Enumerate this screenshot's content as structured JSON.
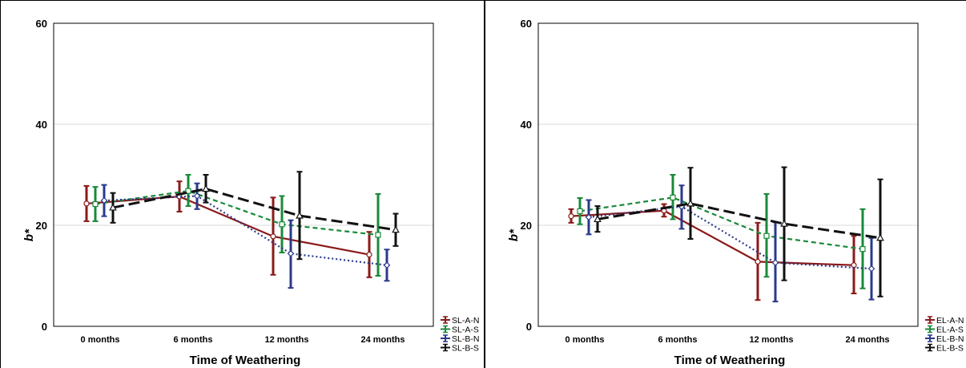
{
  "chart_data": [
    {
      "type": "line",
      "xlabel": "Time of Weathering",
      "ylabel": "b*",
      "ylim": [
        0,
        60
      ],
      "yticks": [
        0,
        20,
        40,
        60
      ],
      "categories": [
        "0 months",
        "6 months",
        "12 months",
        "24 months"
      ],
      "grid": true,
      "legend_position": "bottom-right",
      "series": [
        {
          "name": "SL-A-N",
          "color": "#8b1a1a",
          "values": [
            24.3,
            25.7,
            17.8,
            14.2
          ],
          "err_low": [
            20.8,
            22.7,
            10.2,
            9.7
          ],
          "err_high": [
            27.8,
            28.7,
            25.5,
            18.7
          ]
        },
        {
          "name": "SL-A-S",
          "color": "#1a8a3a",
          "values": [
            24.2,
            26.8,
            20.2,
            18.1
          ],
          "err_low": [
            20.8,
            23.8,
            14.6,
            10.0
          ],
          "err_high": [
            27.6,
            30.0,
            25.8,
            26.2
          ]
        },
        {
          "name": "SL-B-N",
          "color": "#2a3a8a",
          "values": [
            24.9,
            25.8,
            14.4,
            12.1
          ],
          "err_low": [
            21.8,
            23.2,
            7.6,
            9.0
          ],
          "err_high": [
            28.0,
            28.3,
            21.0,
            15.2
          ]
        },
        {
          "name": "SL-B-S",
          "color": "#111111",
          "values": [
            23.5,
            27.2,
            21.9,
            19.1
          ],
          "err_low": [
            20.5,
            24.5,
            13.3,
            15.9
          ],
          "err_high": [
            26.4,
            30.0,
            30.6,
            22.3
          ]
        }
      ]
    },
    {
      "type": "line",
      "xlabel": "Time of Weathering",
      "ylabel": "b*",
      "ylim": [
        0,
        60
      ],
      "yticks": [
        0,
        20,
        40,
        60
      ],
      "categories": [
        "0 months",
        "6 months",
        "12 months",
        "24 months"
      ],
      "grid": true,
      "legend_position": "bottom-right",
      "series": [
        {
          "name": "EL-A-N",
          "color": "#8b1a1a",
          "values": [
            21.8,
            22.9,
            12.8,
            12.1
          ],
          "err_low": [
            20.5,
            21.7,
            5.2,
            6.5
          ],
          "err_high": [
            23.2,
            24.2,
            20.5,
            17.9
          ]
        },
        {
          "name": "EL-A-S",
          "color": "#1a8a3a",
          "values": [
            22.8,
            25.5,
            17.9,
            15.3
          ],
          "err_low": [
            20.2,
            21.2,
            9.8,
            7.5
          ],
          "err_high": [
            25.4,
            30.0,
            26.2,
            23.2
          ]
        },
        {
          "name": "EL-B-N",
          "color": "#2a3a8a",
          "values": [
            21.6,
            23.7,
            12.6,
            11.4
          ],
          "err_low": [
            18.2,
            19.3,
            4.9,
            5.3
          ],
          "err_high": [
            25.0,
            27.9,
            20.6,
            17.5
          ]
        },
        {
          "name": "EL-B-S",
          "color": "#111111",
          "values": [
            21.2,
            24.3,
            20.3,
            17.5
          ],
          "err_low": [
            18.7,
            17.3,
            9.1,
            5.9
          ],
          "err_high": [
            23.8,
            31.4,
            31.5,
            29.1
          ]
        }
      ]
    }
  ]
}
